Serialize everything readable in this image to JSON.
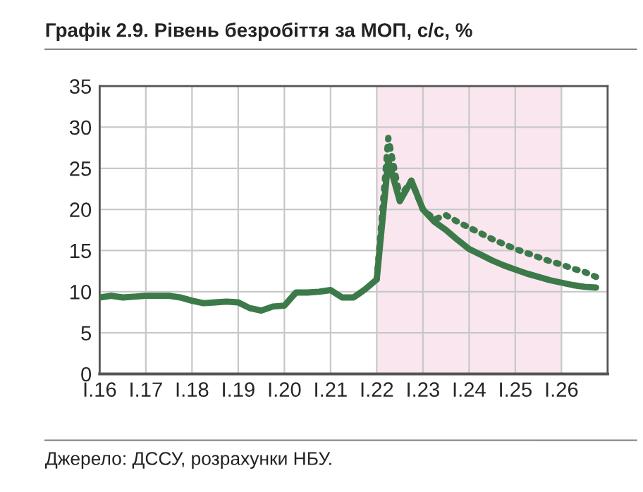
{
  "chart_data": {
    "type": "line",
    "title": "Графік 2.9. Рівень безробіття за МОП, с/с, %",
    "categories": [
      "I.16",
      null,
      null,
      null,
      "I.17",
      null,
      null,
      null,
      "I.18",
      null,
      null,
      null,
      "I.19",
      null,
      null,
      null,
      "I.20",
      null,
      null,
      null,
      "I.21",
      null,
      null,
      null,
      "I.22",
      null,
      null,
      null,
      "I.23",
      null,
      null,
      null,
      "I.24",
      null,
      null,
      null,
      "I.25",
      null,
      null,
      null,
      "I.26",
      null,
      null,
      null
    ],
    "ylim": [
      0,
      35
    ],
    "yticks": [
      0,
      5,
      10,
      15,
      20,
      25,
      30,
      35
    ],
    "grid": true,
    "series": [
      {
        "color": "#3d7a4a",
        "line_style": "dotted",
        "values": [
          null,
          null,
          null,
          null,
          null,
          null,
          null,
          null,
          null,
          null,
          null,
          null,
          null,
          null,
          null,
          null,
          null,
          null,
          null,
          null,
          null,
          null,
          null,
          null,
          11.5,
          28.7,
          21.5,
          23.5,
          20.0,
          18.8,
          19.3,
          18.5,
          17.8,
          17.1,
          16.4,
          15.8,
          15.2,
          14.7,
          14.2,
          13.7,
          13.3,
          12.8,
          12.4,
          11.8
        ]
      },
      {
        "color": "#3d7a4a",
        "line_style": "solid",
        "values": [
          9.3,
          9.5,
          9.3,
          9.4,
          9.5,
          9.5,
          9.5,
          9.3,
          8.9,
          8.6,
          8.7,
          8.8,
          8.7,
          8.0,
          7.7,
          8.2,
          8.3,
          9.9,
          9.9,
          10.0,
          10.2,
          9.3,
          9.3,
          10.3,
          11.5,
          26.0,
          21.0,
          23.5,
          20.0,
          18.5,
          17.5,
          16.3,
          15.2,
          14.5,
          13.8,
          13.2,
          12.7,
          12.2,
          11.8,
          11.4,
          11.1,
          10.8,
          10.6,
          10.5
        ]
      }
    ],
    "bands": [
      {
        "axis": "x",
        "from": "I.22",
        "to": "I.26",
        "color": "#f9e6ee"
      }
    ],
    "annotations": [
      "Джерело: ДССУ, розрахунки НБУ."
    ]
  }
}
